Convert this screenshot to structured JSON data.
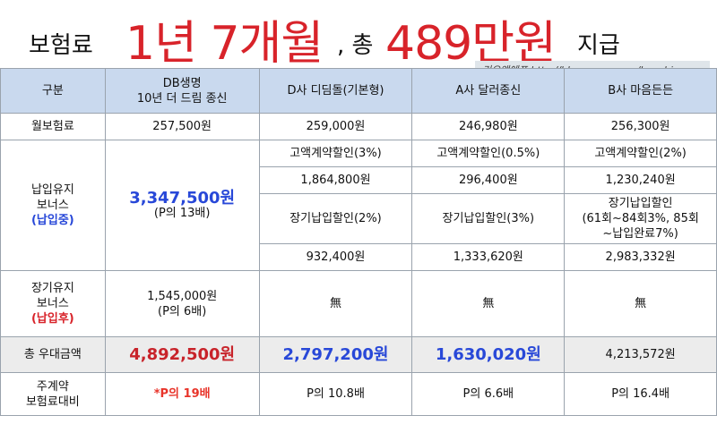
{
  "title": {
    "part1": "보험료",
    "period": "1년 7개월",
    "part2": ", 총",
    "amount": "489만원",
    "part3": "지급"
  },
  "watermark": "리오앤에프 http://blog.naver.com/hooching",
  "table": {
    "headers": [
      "구분",
      "DB생명",
      "10년 더 드림 종신",
      "D사 디딤돌(기본형)",
      "A사 달러종신",
      "B사 마음든든"
    ],
    "monthly": {
      "label": "월보험료",
      "values": [
        "257,500원",
        "259,000원",
        "246,980원",
        "256,300원"
      ]
    },
    "maintain_bonus": {
      "label1": "납입유지",
      "label2": "보너스",
      "label3": "(납입중)",
      "db_amount": "3,347,500원",
      "db_ratio": "(P의 13배)",
      "d_disc1": "고액계약할인(3%)",
      "a_disc1": "고액계약할인(0.5%)",
      "b_disc1": "고액계약할인(2%)",
      "d_val1": "1,864,800원",
      "a_val1": "296,400원",
      "b_val1": "1,230,240원",
      "d_disc2": "장기납입할인(2%)",
      "a_disc2": "장기납입할인(3%)",
      "b_disc2_l1": "장기납입할인",
      "b_disc2_l2": "(61회~84회3%, 85회",
      "b_disc2_l3": "~납입완료7%)",
      "d_val2": "932,400원",
      "a_val2": "1,333,620원",
      "b_val2": "2,983,332원"
    },
    "long_bonus": {
      "label1": "장기유지",
      "label2": "보너스",
      "label3": "(납입후)",
      "db_amount": "1,545,000원",
      "db_ratio": "(P의 6배)",
      "d": "無",
      "a": "無",
      "b": "無"
    },
    "total": {
      "label": "총 우대금액",
      "db": "4,892,500원",
      "d": "2,797,200원",
      "a": "1,630,020원",
      "b": "4,213,572원"
    },
    "ratio": {
      "label1": "주계약",
      "label2": "보험료대비",
      "db": "*P의 19배",
      "d": "P의 10.8배",
      "a": "P의 6.6배",
      "b": "P의 16.4배"
    }
  }
}
